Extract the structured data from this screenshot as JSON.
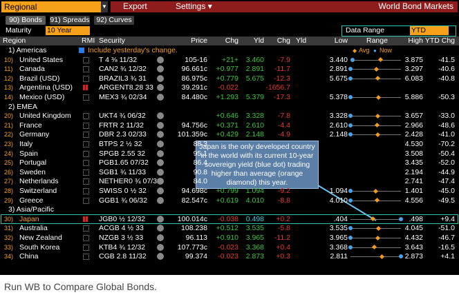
{
  "toolbar": {
    "region": "Regional",
    "export": "Export",
    "settings": "Settings ▾",
    "title": "World Bond Markets"
  },
  "tabs": [
    "90) Bonds",
    "91) Spreads",
    "92) Curves"
  ],
  "filters": {
    "maturity_label": "Maturity",
    "maturity": "10 Year",
    "range_label": "Data Range",
    "range": "YTD"
  },
  "columns": [
    "Region",
    "RMI",
    "Security",
    "Price",
    "Chg",
    "Yld",
    "Chg",
    "Yld",
    "Low",
    "Range",
    "High",
    "YTD Chg"
  ],
  "legend": {
    "avg": "Avg",
    "now": "Now"
  },
  "option": "Include yesterday's change.",
  "groups": [
    {
      "label": "1) Americas",
      "rows": [
        {
          "num": "10)",
          "region": "United States",
          "rmi": false,
          "security": "T 4 ⅜ 11/32",
          "price": "105-16",
          "chg": "+21+",
          "yld": {
            "value": 3.46,
            "label": "3.460"
          },
          "ychg": "-7.9",
          "low": {
            "value": 3.44,
            "label": "3.440"
          },
          "high": {
            "value": 3.875,
            "label": "3.875"
          },
          "ytd": "-41.5",
          "avg": 3.7
        },
        {
          "num": "11)",
          "region": "Canada",
          "rmi": false,
          "security": "CAN2 ¾ 12/32",
          "price": "96.661c",
          "chg": "+0.977",
          "yld": {
            "value": 2.891,
            "label": "2.891"
          },
          "ychg": "-11.7",
          "low": {
            "value": 2.891,
            "label": "2.891"
          },
          "high": {
            "value": 3.297,
            "label": "3.297"
          },
          "ytd": "-40.6",
          "avg": 3.1
        },
        {
          "num": "12)",
          "region": "Brazil (USD)",
          "rmi": false,
          "security": "BRAZIL3 ¾ 31",
          "price": "86.975c",
          "chg": "+0.779",
          "yld": {
            "value": 5.675,
            "label": "5.675"
          },
          "ychg": "-12.3",
          "low": {
            "value": 5.675,
            "label": "5.675"
          },
          "high": {
            "value": 6.083,
            "label": "6.083"
          },
          "ytd": "-40.8",
          "avg": 5.9
        },
        {
          "num": "13)",
          "region": "Argentina (USD)",
          "rmi": true,
          "security": "ARGENT8.28 33",
          "price": "39.291c",
          "chg": "-0.022",
          "yld": null,
          "ychg": "-1656.7",
          "low": null,
          "high": null,
          "ytd": null,
          "avg": null
        },
        {
          "num": "14)",
          "region": "Mexico (USD)",
          "rmi": false,
          "security": "MEX3 ¾ 02/34",
          "price": "84.480c",
          "chg": "+1.293",
          "yld": {
            "value": 5.379,
            "label": "5.379"
          },
          "ychg": "-17.3",
          "low": {
            "value": 5.378,
            "label": "5.378"
          },
          "high": {
            "value": 5.886,
            "label": "5.886"
          },
          "ytd": "-50.3",
          "avg": 5.66
        }
      ]
    },
    {
      "label": "2) EMEA",
      "rows": [
        {
          "num": "20)",
          "region": "United Kingdom",
          "rmi": false,
          "security": "UKT4 ¾ 06/32",
          "price": null,
          "chg": "+0.646",
          "yld": {
            "value": 3.328,
            "label": "3.328"
          },
          "ychg": "-7.8",
          "low": {
            "value": 3.328,
            "label": "3.328"
          },
          "high": {
            "value": 3.657,
            "label": "3.657"
          },
          "ytd": "-33.0",
          "avg": 3.51
        },
        {
          "num": "21)",
          "region": "France",
          "rmi": false,
          "security": "FRTR 2 11/32",
          "price": "94.756c",
          "chg": "+0.371",
          "yld": {
            "value": 2.61,
            "label": "2.610"
          },
          "ychg": "-4.4",
          "low": {
            "value": 2.61,
            "label": "2.610"
          },
          "high": {
            "value": 2.966,
            "label": "2.966"
          },
          "ytd": "-48.6",
          "avg": 2.8
        },
        {
          "num": "22)",
          "region": "Germany",
          "rmi": false,
          "security": "DBR 2.3 02/33",
          "price": "101.359c",
          "chg": "+0.429",
          "yld": {
            "value": 2.148,
            "label": "2.148"
          },
          "ychg": "-4.9",
          "low": {
            "value": 2.148,
            "label": "2.148"
          },
          "high": {
            "value": 2.428,
            "label": "2.428"
          },
          "ytd": "-41.0",
          "avg": 2.3
        },
        {
          "num": "23)",
          "region": "Italy",
          "rmi": false,
          "security": "BTPS 2 ½ 32",
          "price": "88.3",
          "chg": null,
          "yld": null,
          "ychg": null,
          "low": null,
          "high": {
            "value": 4.53,
            "label": "4.530"
          },
          "ytd": "-70.2",
          "avg": null
        },
        {
          "num": "24)",
          "region": "Spain",
          "rmi": false,
          "security": "SPGB 2.55 32",
          "price": "95.1",
          "chg": null,
          "yld": null,
          "ychg": null,
          "low": null,
          "high": {
            "value": 3.508,
            "label": "3.508"
          },
          "ytd": "-50.4",
          "avg": null
        },
        {
          "num": "25)",
          "region": "Portugal",
          "rmi": false,
          "security": "PGB1.65 07/32",
          "price": "86.4",
          "chg": null,
          "yld": null,
          "ychg": null,
          "low": null,
          "high": {
            "value": 3.435,
            "label": "3.435"
          },
          "ytd": "-52.0",
          "avg": null
        },
        {
          "num": "26)",
          "region": "Sweden",
          "rmi": false,
          "security": "SGB1 ¾ 11/33",
          "price": "90.8",
          "chg": null,
          "yld": null,
          "ychg": null,
          "low": null,
          "high": {
            "value": 2.194,
            "label": "2.194"
          },
          "ytd": "-44.9",
          "avg": null
        },
        {
          "num": "27)",
          "region": "Netherlands",
          "rmi": false,
          "security": "NETHER0 ¾ 07/32",
          "price": "84.0",
          "chg": null,
          "yld": null,
          "ychg": null,
          "low": null,
          "high": {
            "value": 2.741,
            "label": "2.741"
          },
          "ytd": "-47.4",
          "avg": null
        },
        {
          "num": "28)",
          "region": "Switzerland",
          "rmi": false,
          "security": "SWISS 0 ½ 32",
          "price": "94.698c",
          "chg": "+0.799",
          "yld": {
            "value": 1.094,
            "label": "1.094"
          },
          "ychg": "-9.2",
          "low": {
            "value": 1.094,
            "label": "1.094"
          },
          "high": {
            "value": 1.401,
            "label": "1.401"
          },
          "ytd": "-45.0",
          "avg": 1.25
        },
        {
          "num": "29)",
          "region": "Greece",
          "rmi": false,
          "security": "GGB1 ¾ 06/32",
          "price": "82.547c",
          "chg": "+0.619",
          "yld": {
            "value": 4.01,
            "label": "4.010"
          },
          "ychg": "-8.8",
          "low": {
            "value": 4.01,
            "label": "4.010"
          },
          "high": {
            "value": 4.556,
            "label": "4.556"
          },
          "ytd": "-49.5",
          "avg": 4.3
        }
      ]
    },
    {
      "label": "3) Asia/Pacific",
      "rows": [
        {
          "num": "30)",
          "region": "Japan",
          "rmi": true,
          "security": "JGB0 ½ 12/32",
          "price": "100.014c",
          "chg": "-0.038",
          "yld": {
            "value": 0.498,
            "label": "0.498"
          },
          "ychg": "+0.2",
          "low": {
            "value": 0.404,
            "label": ".404"
          },
          "high": {
            "value": 0.498,
            "label": ".498"
          },
          "ytd": "+9.4",
          "avg": 0.446,
          "highlight": true
        },
        {
          "num": "31)",
          "region": "Australia",
          "rmi": false,
          "security": "ACGB 4 ½ 33",
          "price": "108.238",
          "chg": "+0.512",
          "yld": {
            "value": 3.535,
            "label": "3.535"
          },
          "ychg": "-5.8",
          "low": {
            "value": 3.535,
            "label": "3.535"
          },
          "high": {
            "value": 4.045,
            "label": "4.045"
          },
          "ytd": "-51.0",
          "avg": 3.82
        },
        {
          "num": "32)",
          "region": "New Zealand",
          "rmi": false,
          "security": "NZGB 3 ½ 33",
          "price": "96.113",
          "chg": "+0.910",
          "yld": {
            "value": 3.965,
            "label": "3.965"
          },
          "ychg": "-11.2",
          "low": {
            "value": 3.965,
            "label": "3.965"
          },
          "high": {
            "value": 4.432,
            "label": "4.432"
          },
          "ytd": "-46.7",
          "avg": 4.22
        },
        {
          "num": "33)",
          "region": "South Korea",
          "rmi": false,
          "security": "KTB4 ¾ 12/32",
          "price": "107.773c",
          "chg": "-0.023",
          "yld": {
            "value": 3.368,
            "label": "3.368"
          },
          "ychg": "+0.4",
          "low": {
            "value": 3.368,
            "label": "3.368"
          },
          "high": {
            "value": 3.643,
            "label": "3.643"
          },
          "ytd": "-16.5",
          "avg": 3.5
        },
        {
          "num": "34)",
          "region": "China",
          "rmi": false,
          "security": "CGB 2.8 11/32",
          "price": "99.374",
          "chg": "-0.023",
          "yld": {
            "value": 2.873,
            "label": "2.873"
          },
          "ychg": "+0.3",
          "low": {
            "value": 2.811,
            "label": "2.811"
          },
          "high": {
            "value": 2.873,
            "label": "2.873"
          },
          "ytd": "+4.1",
          "avg": 2.85
        }
      ]
    }
  ],
  "annotation": "Japan is the only developed country in the world with its current 10-year sovereign yield (blue dot) trading higher than average (orange diamond) this year.",
  "footer": "Run WB to Compare Global Bonds."
}
